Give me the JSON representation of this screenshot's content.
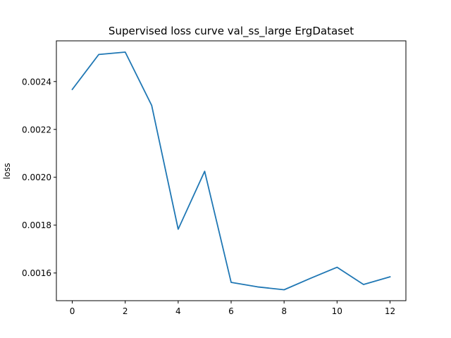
{
  "chart_data": {
    "type": "line",
    "title": "Supervised loss curve val_ss_large ErgDataset",
    "xlabel": "",
    "ylabel": "loss",
    "x": [
      0,
      1,
      2,
      3,
      4,
      5,
      6,
      7,
      8,
      9,
      10,
      11,
      12
    ],
    "series": [
      {
        "values": [
          0.002367,
          0.002513,
          0.002523,
          0.0023,
          0.001783,
          0.002025,
          0.001561,
          0.001542,
          0.00153,
          0.001578,
          0.001624,
          0.001552,
          0.001584
        ],
        "color": "#1f77b4"
      }
    ],
    "xlim": [
      -0.6,
      12.6
    ],
    "ylim": [
      0.0014844,
      0.00257
    ],
    "xticks": [
      0,
      2,
      4,
      6,
      8,
      10,
      12
    ],
    "xtick_labels": [
      "0",
      "2",
      "4",
      "6",
      "8",
      "10",
      "12"
    ],
    "yticks": [
      0.0016,
      0.0018,
      0.002,
      0.0022,
      0.0024
    ],
    "ytick_labels": [
      "0.0016",
      "0.0018",
      "0.0020",
      "0.0022",
      "0.0024"
    ],
    "grid": false,
    "legend": false
  }
}
